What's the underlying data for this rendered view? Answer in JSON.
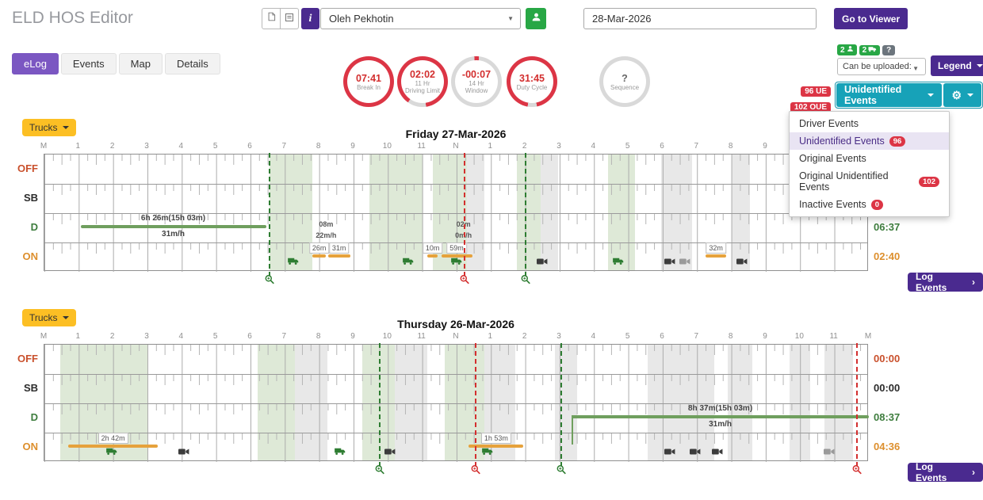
{
  "colors": {
    "purple": "#4a2a8f",
    "tab_purple": "#7b57c2",
    "teal": "#17a2b8",
    "red": "#dc3545",
    "green": "#28a745",
    "amber": "#fcbf24",
    "duty_green": "#6f9f5e",
    "duty_orange": "#e6a23c",
    "band_green": "rgba(122,168,96,.25)",
    "band_gray": "rgba(120,120,120,.17)"
  },
  "icons": {
    "document-icon": "doc outline",
    "note-icon": "square note outline",
    "info-icon": "i",
    "person-icon": "person silhouette",
    "truck-icon": "truck silhouette",
    "camera-icon": "video camera",
    "magnifier-icon": "magnifier with plus",
    "gear-icon": "⚙",
    "caret-down-icon": "▾",
    "chevron-right-icon": "›",
    "help-icon": "?",
    "select-caret-icon": "▼"
  },
  "header": {
    "title": "ELD HOS Editor",
    "info_button": "i",
    "driver_select": {
      "value": "Oleh Pekhotin"
    },
    "date_field": {
      "value": "28-Mar-2026"
    },
    "viewer_button": "Go to Viewer"
  },
  "tabs": [
    {
      "label": "eLog",
      "active": true
    },
    {
      "label": "Events",
      "active": false
    },
    {
      "label": "Map",
      "active": false
    },
    {
      "label": "Details",
      "active": false
    }
  ],
  "gauges": [
    {
      "value": "07:41",
      "lines": [
        "Break In"
      ],
      "pct": 100,
      "from": "0deg",
      "value_color": "#d32f2f"
    },
    {
      "value": "02:02",
      "lines": [
        "11 Hr",
        "Driving Limit"
      ],
      "pct": 88,
      "from": "215deg",
      "value_color": "#d32f2f"
    },
    {
      "value": "-00:07",
      "lines": [
        "14 Hr",
        "Window"
      ],
      "pct": 3,
      "from": "-5deg",
      "value_color": "#d32f2f"
    },
    {
      "value": "31:45",
      "lines": [
        "Duty Cycle"
      ],
      "pct": 94,
      "from": "190deg",
      "value_color": "#d32f2f"
    },
    {
      "value": "?",
      "lines": [
        "Sequence"
      ],
      "pct": 0,
      "from": "0deg",
      "value_color": "#666666"
    }
  ],
  "upload_cluster": {
    "drivers_badge": "2",
    "trucks_badge": "2",
    "help_badge": "?",
    "upload_select": "Can be uploaded:",
    "legend_button": "Legend"
  },
  "events_cluster": {
    "ue_badge": "96 UE",
    "oue_badge": "102 OUE",
    "events_button": "Unidentified Events",
    "menu": [
      {
        "label": "Driver Events",
        "badge": "",
        "selected": false
      },
      {
        "label": "Unidentified Events",
        "badge": "96",
        "selected": true
      },
      {
        "label": "Original Events",
        "badge": "",
        "selected": false
      },
      {
        "label": "Original Unidentified Events",
        "badge": "102",
        "selected": false
      },
      {
        "label": "Inactive Events",
        "badge": "0",
        "selected": false
      }
    ]
  },
  "chart_data": [
    {
      "type": "eld-duty-grid",
      "title": "Friday 27-Mar-2026",
      "trucks_label": "Trucks",
      "log_events_label": "Log Events",
      "axis": [
        "M",
        "1",
        "2",
        "3",
        "4",
        "5",
        "6",
        "7",
        "8",
        "9",
        "10",
        "11",
        "N",
        "1",
        "2",
        "3",
        "4",
        "5",
        "6",
        "7",
        "8",
        "9",
        "10",
        "11",
        "M"
      ],
      "rows": [
        {
          "label": "OFF",
          "color": "#c9502c",
          "total": ""
        },
        {
          "label": "SB",
          "color": "#2b2b2b",
          "total": ""
        },
        {
          "label": "D",
          "color": "#3e7d3e",
          "total": "06:37"
        },
        {
          "label": "ON",
          "color": "#dd8f2d",
          "total": "02:40"
        }
      ],
      "bands": [
        {
          "start": 6.55,
          "end": 7.8,
          "color": "green"
        },
        {
          "start": 9.45,
          "end": 11.0,
          "color": "green"
        },
        {
          "start": 11.3,
          "end": 12.3,
          "color": "green"
        },
        {
          "start": 12.3,
          "end": 12.8,
          "color": "gray"
        },
        {
          "start": 13.75,
          "end": 14.45,
          "color": "green"
        },
        {
          "start": 14.45,
          "end": 14.95,
          "color": "gray"
        },
        {
          "start": 16.4,
          "end": 17.2,
          "color": "green"
        },
        {
          "start": 17.95,
          "end": 18.85,
          "color": "gray"
        },
        {
          "start": 20.0,
          "end": 20.55,
          "color": "gray"
        }
      ],
      "segments": [
        {
          "row": 2,
          "start": 1.05,
          "end": 6.45,
          "color": "green",
          "label_above": "6h 26m(15h 03m)",
          "label_below": "31m/h"
        },
        {
          "row": 3,
          "start": 7.8,
          "end": 8.2,
          "color": "orange",
          "tag": "26m"
        },
        {
          "row": 3,
          "start": 8.25,
          "end": 8.9,
          "color": "orange",
          "tag": "31m"
        },
        {
          "row": 3,
          "start": 11.15,
          "end": 11.45,
          "color": "orange",
          "tag": "10m"
        },
        {
          "row": 3,
          "start": 11.55,
          "end": 12.45,
          "color": "orange",
          "tag": "59m"
        },
        {
          "row": 3,
          "start": 19.25,
          "end": 19.85,
          "color": "orange",
          "tag": "32m"
        }
      ],
      "minor_events": [
        {
          "hour": 8.2,
          "duration": "08m",
          "speed": "22m/h"
        },
        {
          "hour": 12.2,
          "duration": "02m",
          "speed": "0m/h"
        }
      ],
      "vlines": [
        {
          "hour": 6.55,
          "color": "green"
        },
        {
          "hour": 12.23,
          "color": "red"
        },
        {
          "hour": 14.0,
          "color": "green"
        }
      ],
      "icons": [
        {
          "type": "truck",
          "hour": 7.25
        },
        {
          "type": "truck",
          "hour": 10.6
        },
        {
          "type": "truck",
          "hour": 12.0
        },
        {
          "type": "camera",
          "hour": 14.5
        },
        {
          "type": "truck",
          "hour": 16.7
        },
        {
          "type": "camera",
          "hour": 18.2
        },
        {
          "type": "camera-gray",
          "hour": 18.65
        },
        {
          "type": "camera",
          "hour": 20.3
        }
      ]
    },
    {
      "type": "eld-duty-grid",
      "title": "Thursday 26-Mar-2026",
      "trucks_label": "Trucks",
      "log_events_label": "Log Events",
      "axis": [
        "M",
        "1",
        "2",
        "3",
        "4",
        "5",
        "6",
        "7",
        "8",
        "9",
        "10",
        "11",
        "N",
        "1",
        "2",
        "3",
        "4",
        "5",
        "6",
        "7",
        "8",
        "9",
        "10",
        "11",
        "M"
      ],
      "rows": [
        {
          "label": "OFF",
          "color": "#c9502c",
          "total": "00:00"
        },
        {
          "label": "SB",
          "color": "#2b2b2b",
          "total": "00:00"
        },
        {
          "label": "D",
          "color": "#3e7d3e",
          "total": "08:37"
        },
        {
          "label": "ON",
          "color": "#dd8f2d",
          "total": "04:36"
        }
      ],
      "bands": [
        {
          "start": 0.45,
          "end": 3.0,
          "color": "green"
        },
        {
          "start": 6.2,
          "end": 7.3,
          "color": "green"
        },
        {
          "start": 7.3,
          "end": 8.25,
          "color": "gray"
        },
        {
          "start": 9.25,
          "end": 10.2,
          "color": "green"
        },
        {
          "start": 10.2,
          "end": 11.15,
          "color": "gray"
        },
        {
          "start": 11.65,
          "end": 12.8,
          "color": "green"
        },
        {
          "start": 12.8,
          "end": 13.7,
          "color": "gray"
        },
        {
          "start": 14.85,
          "end": 15.5,
          "color": "gray"
        },
        {
          "start": 17.55,
          "end": 19.5,
          "color": "gray"
        },
        {
          "start": 19.9,
          "end": 20.6,
          "color": "gray"
        },
        {
          "start": 21.7,
          "end": 22.3,
          "color": "gray"
        },
        {
          "start": 22.7,
          "end": 23.55,
          "color": "gray"
        }
      ],
      "segments": [
        {
          "row": 3,
          "start": 0.7,
          "end": 3.3,
          "color": "orange",
          "tag": "2h 42m"
        },
        {
          "row": 3,
          "start": 12.35,
          "end": 13.95,
          "color": "orange",
          "tag": "1h 53m"
        },
        {
          "row": 2,
          "start": 15.35,
          "end": 24,
          "color": "green",
          "label_above": "8h 37m(15h 03m)",
          "label_below": "31m/h",
          "riser": true
        }
      ],
      "minor_events": [],
      "vlines": [
        {
          "hour": 9.75,
          "color": "green"
        },
        {
          "hour": 12.55,
          "color": "red"
        },
        {
          "hour": 15.05,
          "color": "green"
        },
        {
          "hour": 23.65,
          "color": "red"
        }
      ],
      "icons": [
        {
          "type": "truck",
          "hour": 1.95
        },
        {
          "type": "camera",
          "hour": 4.05
        },
        {
          "type": "truck",
          "hour": 8.6
        },
        {
          "type": "camera",
          "hour": 10.05
        },
        {
          "type": "truck",
          "hour": 12.9
        },
        {
          "type": "camera",
          "hour": 18.2
        },
        {
          "type": "camera",
          "hour": 18.95
        },
        {
          "type": "camera",
          "hour": 19.6
        },
        {
          "type": "camera-gray",
          "hour": 22.85
        }
      ]
    }
  ]
}
